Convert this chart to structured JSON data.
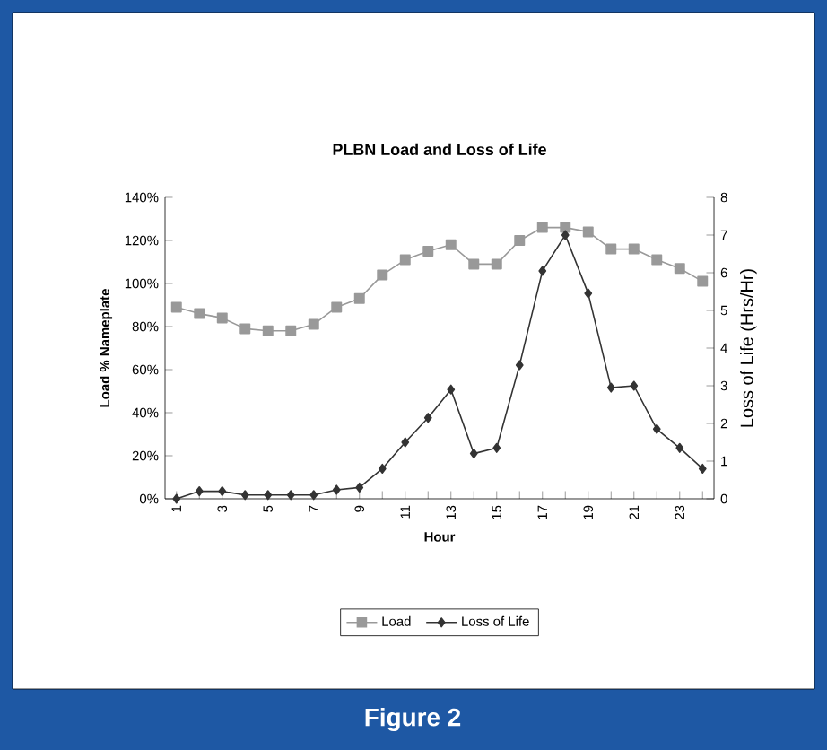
{
  "chart_data": {
    "type": "line",
    "title": "PLBN Load and Loss of Life",
    "xlabel": "Hour",
    "ylabel": "Load % Nameplate",
    "y2label": "Loss of Life (Hrs/Hr)",
    "categories": [
      "1",
      null,
      "3",
      null,
      "5",
      null,
      "7",
      null,
      "9",
      null,
      "11",
      null,
      "13",
      null,
      "15",
      null,
      "17",
      null,
      "19",
      null,
      "21",
      null,
      "23",
      null
    ],
    "series": [
      {
        "name": "Load",
        "color": "#999999",
        "marker": "square",
        "values": [
          89,
          86,
          84,
          79,
          78,
          78,
          81,
          89,
          93,
          104,
          111,
          115,
          118,
          109,
          109,
          120,
          126,
          126,
          124,
          116,
          116,
          111,
          107,
          101
        ]
      },
      {
        "name": "Loss of Life",
        "color": "#333333",
        "marker": "diamond",
        "axis": "y2",
        "values": [
          0,
          0.2,
          0.2,
          0.1,
          0.1,
          0.1,
          0.1,
          0.24,
          0.3,
          0.8,
          1.5,
          2.15,
          2.9,
          1.2,
          1.35,
          3.55,
          6.05,
          7.0,
          5.45,
          2.95,
          3.0,
          1.85,
          1.35,
          0.8
        ]
      }
    ],
    "ylim": [
      0,
      140
    ],
    "yticks": [
      {
        "value": 0,
        "label": "0%"
      },
      {
        "value": 20,
        "label": "20%"
      },
      {
        "value": 40,
        "label": "40%"
      },
      {
        "value": 60,
        "label": "60%"
      },
      {
        "value": 80,
        "label": "80%"
      },
      {
        "value": 100,
        "label": "100%"
      },
      {
        "value": 120,
        "label": "120%"
      },
      {
        "value": 140,
        "label": "140%"
      }
    ],
    "y2lim": [
      0,
      8
    ],
    "y2ticks": [
      0,
      1,
      2,
      3,
      4,
      5,
      6,
      7,
      8
    ],
    "legend": "bottom",
    "grid": false,
    "annotations": [
      "Figure 2"
    ]
  }
}
